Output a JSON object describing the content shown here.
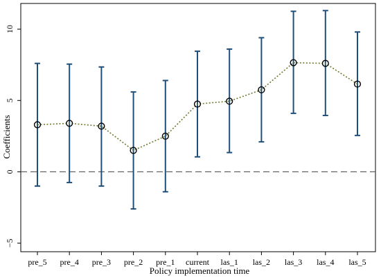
{
  "chart_data": {
    "type": "scatter",
    "title": "",
    "xlabel": "Policy implementation time",
    "ylabel": "Coefficients",
    "categories": [
      "pre_5",
      "pre_4",
      "pre_3",
      "pre_2",
      "pre_1",
      "current",
      "las_1",
      "las_2",
      "las_3",
      "las_4",
      "las_5"
    ],
    "values": [
      3.3,
      3.4,
      3.2,
      1.5,
      2.5,
      4.75,
      4.95,
      5.75,
      7.65,
      7.6,
      6.15
    ],
    "ci_lower": [
      -1.0,
      -0.75,
      -1.0,
      -2.6,
      -1.4,
      1.05,
      1.35,
      2.1,
      4.1,
      3.95,
      2.55
    ],
    "ci_upper": [
      7.6,
      7.55,
      7.35,
      5.6,
      6.4,
      8.45,
      8.6,
      9.4,
      11.25,
      11.3,
      9.8
    ],
    "yticks": [
      -5,
      0,
      5,
      10
    ],
    "ylim": [
      -5.6,
      11.8
    ],
    "reference_line": 0,
    "grid": false,
    "colors": {
      "error_bar": "#1f4e79",
      "connector": "#6b7a2b",
      "marker_edge": "#000000",
      "reference": "#555555"
    }
  }
}
